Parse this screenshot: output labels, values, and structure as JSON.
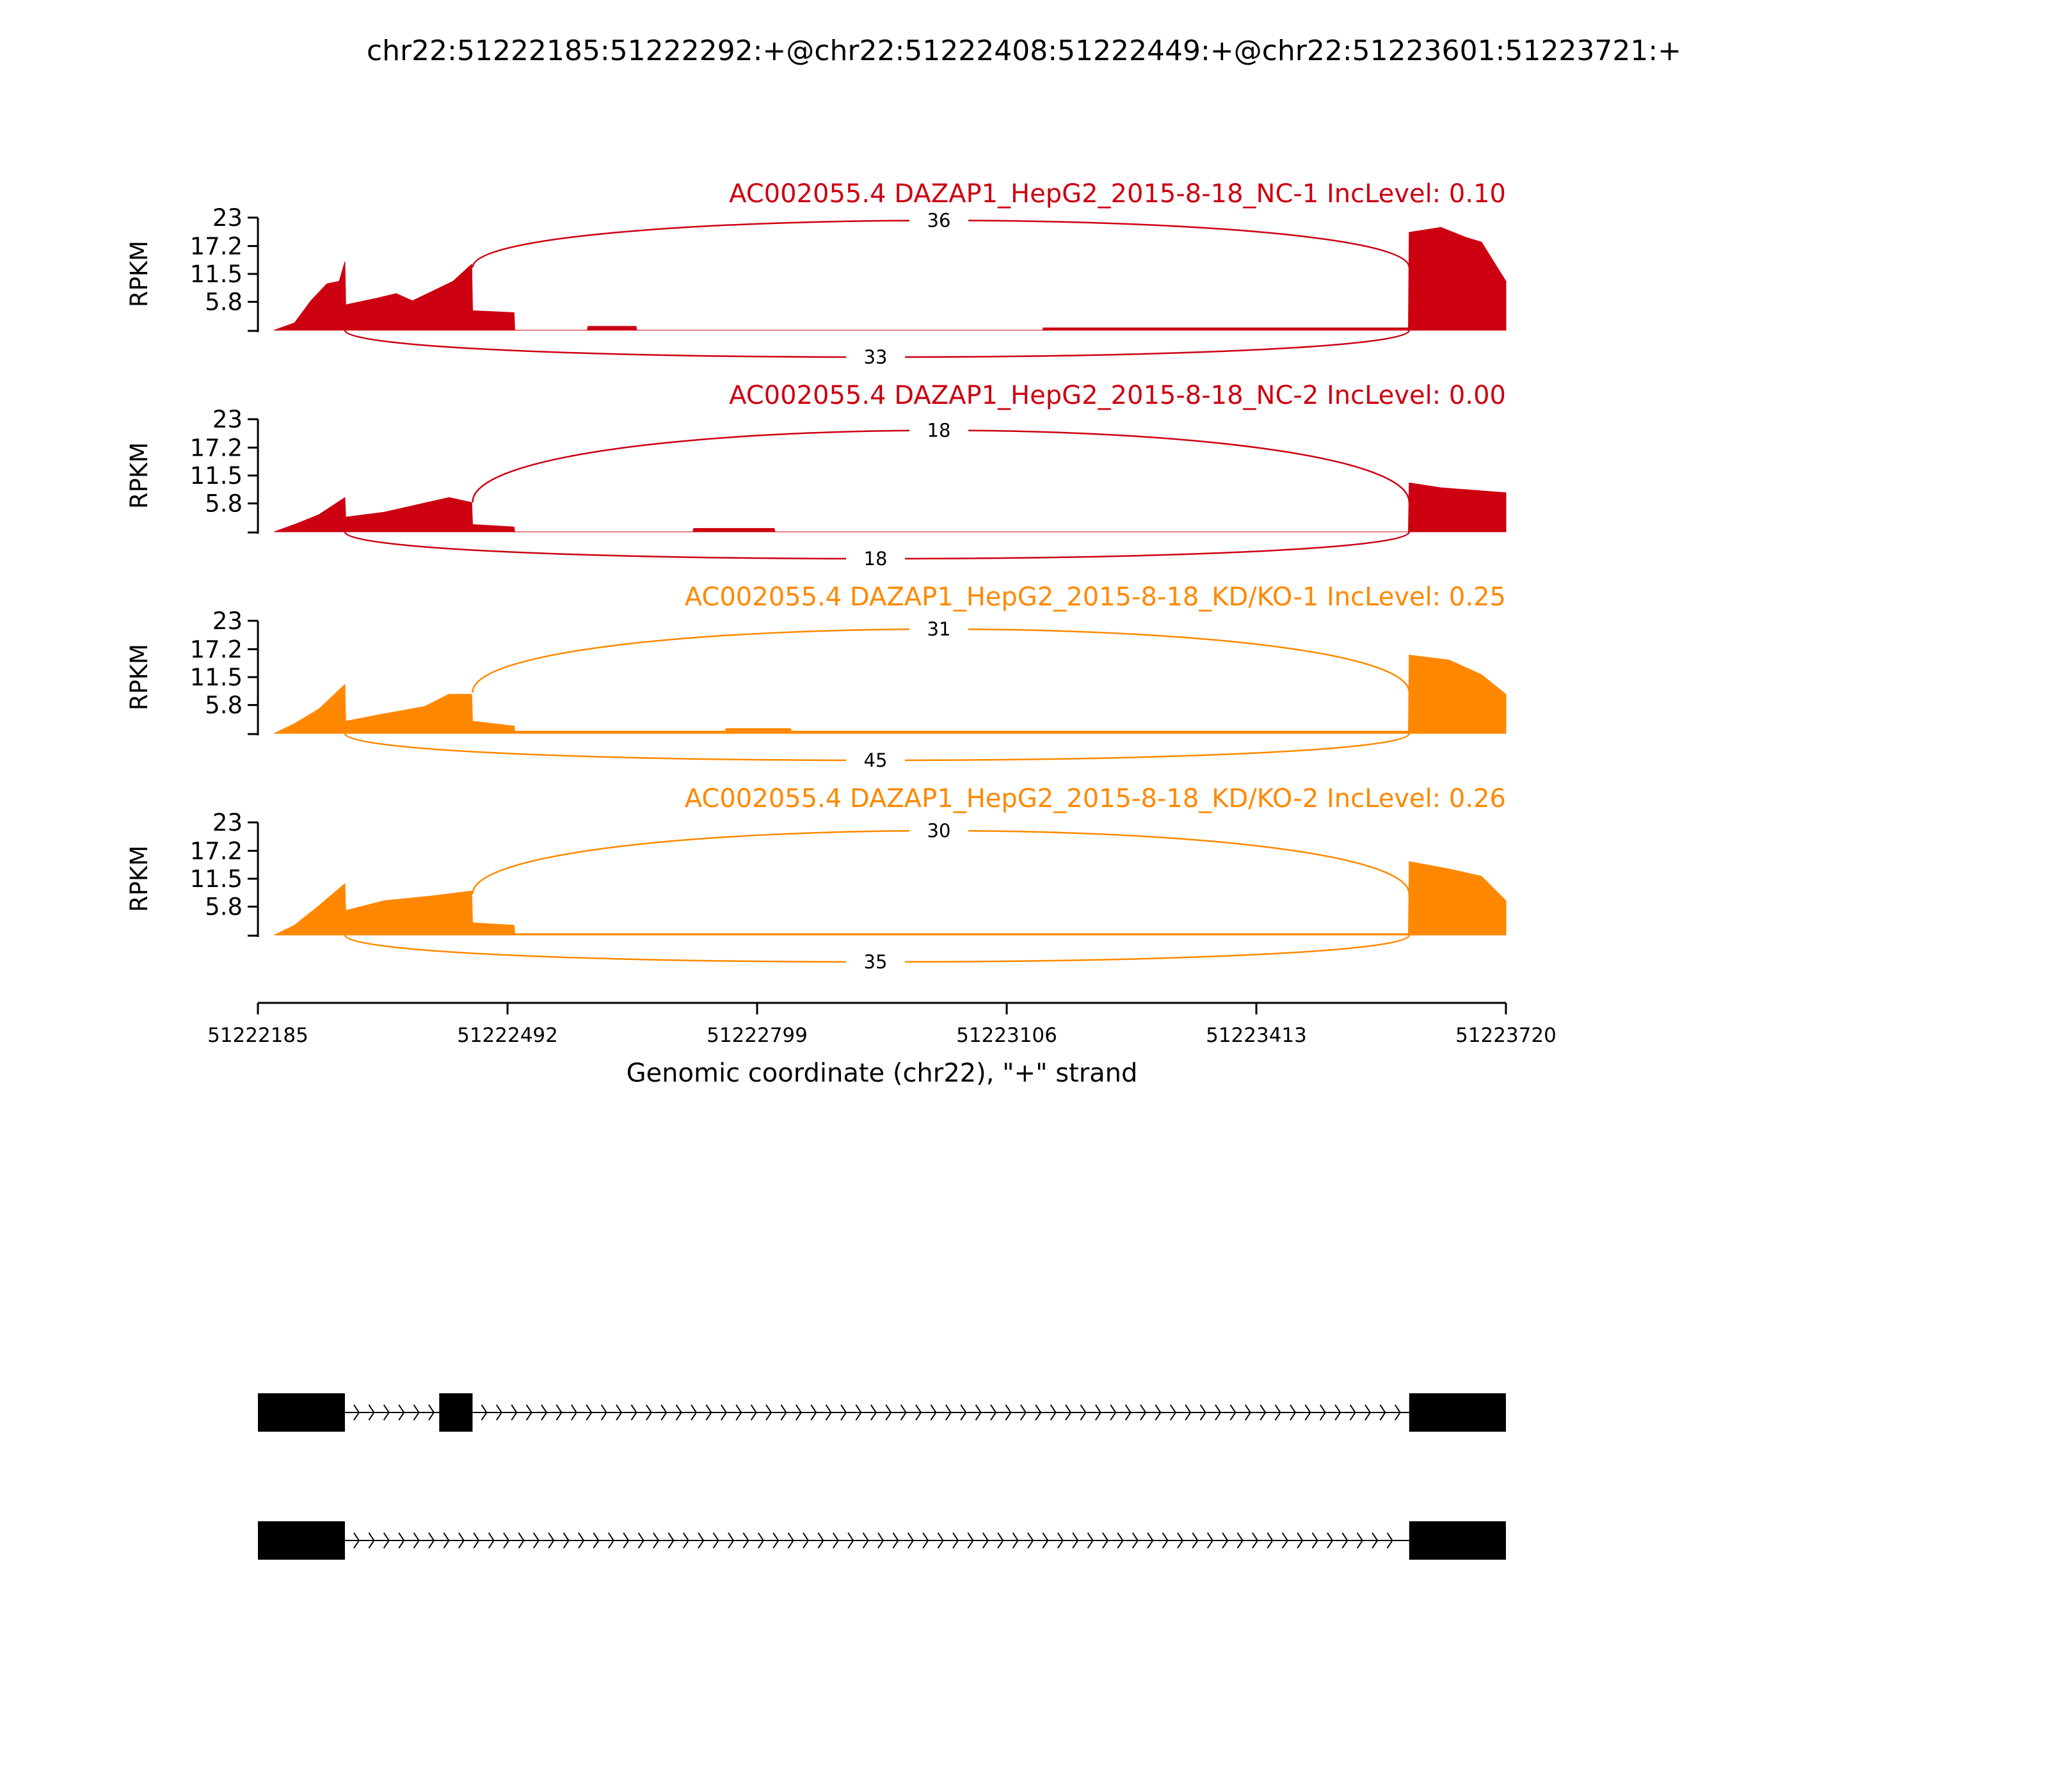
{
  "chart_data": {
    "type": "area",
    "title": "chr22:51222185:51222292:+@chr22:51222408:51222449:+@chr22:51223601:51223721:+",
    "xlabel": "Genomic coordinate (chr22), \"+\" strand",
    "ylabel": "RPKM",
    "xlim": [
      51222185,
      51223720
    ],
    "ylim": [
      0,
      23
    ],
    "xticks": [
      "51222185",
      "51222492",
      "51222799",
      "51223106",
      "51223413",
      "51223720"
    ],
    "yticks": [
      "23",
      "17.2",
      "11.5",
      "5.8"
    ],
    "exons": [
      {
        "start": 51222185,
        "end": 51222292
      },
      {
        "start": 51222408,
        "end": 51222449
      },
      {
        "start": 51223601,
        "end": 51223721
      }
    ],
    "tracks": [
      {
        "name": "AC002055.4 DAZAP1_HepG2_2015-8-18_NC-1 IncLevel: 0.10",
        "color": "#cc0011",
        "junctions": [
          {
            "from": 51222449,
            "to": 51223601,
            "count": "36",
            "side": "top"
          },
          {
            "from": 51222292,
            "to": 51223601,
            "count": "33",
            "side": "bottom"
          }
        ],
        "coverage": [
          [
            51222205,
            0
          ],
          [
            51222230,
            1.5
          ],
          [
            51222250,
            6
          ],
          [
            51222270,
            9.5
          ],
          [
            51222285,
            10
          ],
          [
            51222292,
            14
          ],
          [
            51222293,
            5.2
          ],
          [
            51222330,
            6.5
          ],
          [
            51222355,
            7.5
          ],
          [
            51222375,
            6
          ],
          [
            51222400,
            8
          ],
          [
            51222425,
            10
          ],
          [
            51222448,
            13.5
          ],
          [
            51222449,
            4
          ],
          [
            51222500,
            3.6
          ],
          [
            51222501,
            0
          ],
          [
            51222590,
            0
          ],
          [
            51222591,
            0.8
          ],
          [
            51222650,
            0.8
          ],
          [
            51222651,
            0
          ],
          [
            51223150,
            0
          ],
          [
            51223151,
            0.5
          ],
          [
            51223600,
            0.5
          ],
          [
            51223601,
            20
          ],
          [
            51223640,
            21
          ],
          [
            51223670,
            19
          ],
          [
            51223690,
            18
          ],
          [
            51223705,
            14
          ],
          [
            51223720,
            10
          ]
        ]
      },
      {
        "name": "AC002055.4 DAZAP1_HepG2_2015-8-18_NC-2 IncLevel: 0.00",
        "color": "#cc0011",
        "junctions": [
          {
            "from": 51222449,
            "to": 51223601,
            "count": "18",
            "side": "top"
          },
          {
            "from": 51222292,
            "to": 51223601,
            "count": "18",
            "side": "bottom"
          }
        ],
        "coverage": [
          [
            51222205,
            0
          ],
          [
            51222230,
            1.5
          ],
          [
            51222260,
            3.5
          ],
          [
            51222292,
            7
          ],
          [
            51222293,
            3
          ],
          [
            51222340,
            4
          ],
          [
            51222380,
            5.5
          ],
          [
            51222420,
            7
          ],
          [
            51222448,
            6
          ],
          [
            51222449,
            1.5
          ],
          [
            51222500,
            1
          ],
          [
            51222501,
            0
          ],
          [
            51222720,
            0
          ],
          [
            51222721,
            0.7
          ],
          [
            51222820,
            0.7
          ],
          [
            51222821,
            0
          ],
          [
            51223600,
            0
          ],
          [
            51223601,
            10
          ],
          [
            51223640,
            9
          ],
          [
            51223680,
            8.5
          ],
          [
            51223720,
            8
          ]
        ]
      },
      {
        "name": "AC002055.4 DAZAP1_HepG2_2015-8-18_KD/KO-1 IncLevel: 0.25",
        "color": "#ff8800",
        "junctions": [
          {
            "from": 51222449,
            "to": 51223601,
            "count": "31",
            "side": "top"
          },
          {
            "from": 51222292,
            "to": 51223601,
            "count": "45",
            "side": "bottom"
          }
        ],
        "coverage": [
          [
            51222205,
            0
          ],
          [
            51222230,
            2
          ],
          [
            51222260,
            5
          ],
          [
            51222292,
            10
          ],
          [
            51222293,
            2.5
          ],
          [
            51222340,
            4
          ],
          [
            51222390,
            5.5
          ],
          [
            51222420,
            8
          ],
          [
            51222448,
            8
          ],
          [
            51222449,
            2.5
          ],
          [
            51222500,
            1.5
          ],
          [
            51222501,
            0.5
          ],
          [
            51222760,
            0.5
          ],
          [
            51222761,
            1
          ],
          [
            51222840,
            1
          ],
          [
            51222841,
            0.5
          ],
          [
            51223600,
            0.5
          ],
          [
            51223601,
            16
          ],
          [
            51223650,
            15
          ],
          [
            51223690,
            12
          ],
          [
            51223720,
            8
          ]
        ]
      },
      {
        "name": "AC002055.4 DAZAP1_HepG2_2015-8-18_KD/KO-2 IncLevel: 0.26",
        "color": "#ff8800",
        "junctions": [
          {
            "from": 51222449,
            "to": 51223601,
            "count": "30",
            "side": "top"
          },
          {
            "from": 51222292,
            "to": 51223601,
            "count": "35",
            "side": "bottom"
          }
        ],
        "coverage": [
          [
            51222205,
            0
          ],
          [
            51222230,
            2
          ],
          [
            51222260,
            6
          ],
          [
            51222292,
            10.5
          ],
          [
            51222293,
            5
          ],
          [
            51222340,
            7
          ],
          [
            51222400,
            8
          ],
          [
            51222448,
            9
          ],
          [
            51222449,
            2.5
          ],
          [
            51222500,
            2
          ],
          [
            51222501,
            0.3
          ],
          [
            51223600,
            0.3
          ],
          [
            51223601,
            15
          ],
          [
            51223650,
            13.5
          ],
          [
            51223690,
            12
          ],
          [
            51223720,
            7
          ]
        ]
      }
    ],
    "transcripts": [
      {
        "exons": [
          [
            51222185,
            51222292
          ],
          [
            51222408,
            51222449
          ],
          [
            51223601,
            51223721
          ]
        ]
      },
      {
        "exons": [
          [
            51222185,
            51222292
          ],
          [
            51223601,
            51223721
          ]
        ]
      }
    ]
  }
}
